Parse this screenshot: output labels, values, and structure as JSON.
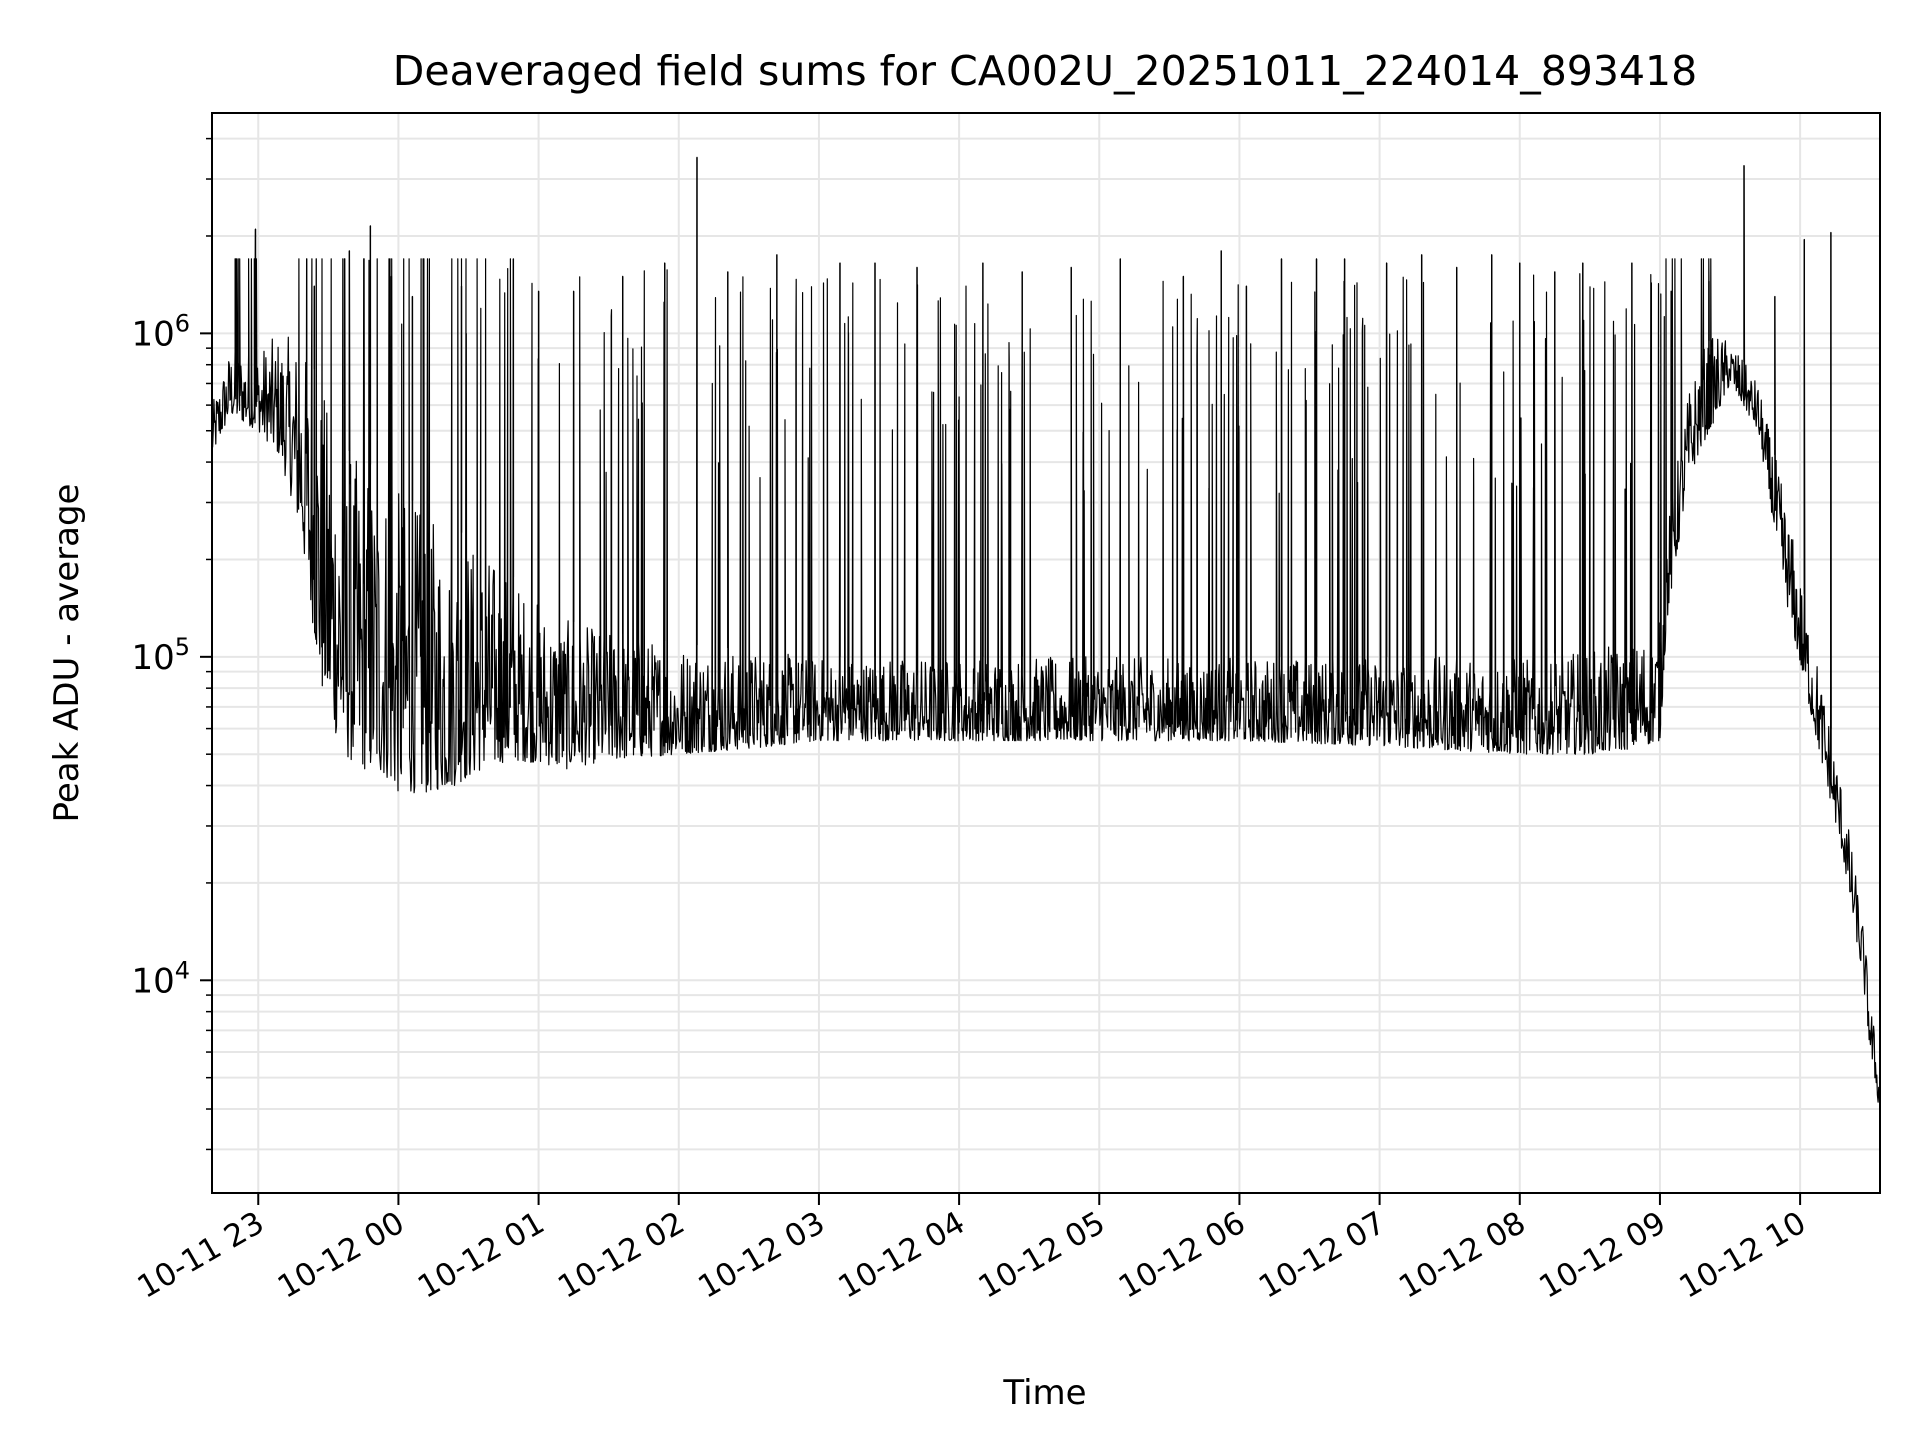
{
  "chart_data": {
    "type": "line",
    "title": "Deaveraged field sums for CA002U_20251011_224014_893418",
    "xlabel": "Time",
    "ylabel": "Peak ADU - average",
    "yscale": "log",
    "ylim": [
      2200,
      4800000
    ],
    "xlim_hours": [
      -1.33,
      10.57
    ],
    "grid": true,
    "line_color": "#000000",
    "grid_color": "#e6e6e6",
    "x_ticks": [
      {
        "label": "10-11 23",
        "hour": -1
      },
      {
        "label": "10-12 00",
        "hour": 0
      },
      {
        "label": "10-12 01",
        "hour": 1
      },
      {
        "label": "10-12 02",
        "hour": 2
      },
      {
        "label": "10-12 03",
        "hour": 3
      },
      {
        "label": "10-12 04",
        "hour": 4
      },
      {
        "label": "10-12 05",
        "hour": 5
      },
      {
        "label": "10-12 06",
        "hour": 6
      },
      {
        "label": "10-12 07",
        "hour": 7
      },
      {
        "label": "10-12 08",
        "hour": 8
      },
      {
        "label": "10-12 09",
        "hour": 9
      },
      {
        "label": "10-12 10",
        "hour": 10
      }
    ],
    "y_ticks": [
      {
        "base": "10",
        "exp": "4",
        "value": 10000
      },
      {
        "base": "10",
        "exp": "5",
        "value": 100000
      },
      {
        "base": "10",
        "exp": "6",
        "value": 1000000
      }
    ],
    "series": [
      {
        "name": "Deaveraged field sum",
        "envelope": {
          "hour": [
            -1.33,
            -1.2,
            -1.0,
            -0.85,
            -0.7,
            -0.55,
            -0.4,
            -0.25,
            -0.1,
            0.0,
            0.2,
            0.4,
            0.6,
            0.8,
            1.0,
            1.2,
            1.5,
            2.0,
            2.5,
            3.0,
            4.0,
            5.0,
            6.0,
            7.0,
            8.0,
            8.5,
            8.8,
            9.0,
            9.05,
            9.2,
            9.3,
            9.4,
            9.5,
            9.7,
            9.9,
            10.1,
            10.3,
            10.45,
            10.5,
            10.55,
            10.57
          ],
          "low": [
            420000,
            560000,
            500000,
            420000,
            250000,
            80000,
            50000,
            45000,
            43000,
            38000,
            38000,
            40000,
            45000,
            48000,
            47000,
            45000,
            48000,
            50000,
            52000,
            55000,
            55000,
            55000,
            55000,
            53000,
            50000,
            50000,
            52000,
            55000,
            130000,
            350000,
            450000,
            550000,
            700000,
            500000,
            150000,
            60000,
            25000,
            10000,
            6000,
            4500,
            3500
          ],
          "high": [
            600000,
            900000,
            900000,
            1000000,
            950000,
            700000,
            450000,
            400000,
            380000,
            330000,
            280000,
            250000,
            220000,
            180000,
            150000,
            130000,
            120000,
            110000,
            105000,
            100000,
            100000,
            100000,
            100000,
            100000,
            100000,
            105000,
            110000,
            130000,
            250000,
            650000,
            900000,
            1000000,
            950000,
            700000,
            300000,
            110000,
            40000,
            15000,
            9000,
            6000,
            5000
          ]
        },
        "spikes": [
          {
            "hour": -1.02,
            "value": 2100000
          },
          {
            "hour": -0.6,
            "value": 1400000
          },
          {
            "hour": -0.35,
            "value": 1800000
          },
          {
            "hour": -0.2,
            "value": 2150000
          },
          {
            "hour": -0.05,
            "value": 1500000
          },
          {
            "hour": 0.1,
            "value": 1300000
          },
          {
            "hour": 0.45,
            "value": 1400000
          },
          {
            "hour": 0.82,
            "value": 1700000
          },
          {
            "hour": 1.0,
            "value": 1350000
          },
          {
            "hour": 1.25,
            "value": 1350000
          },
          {
            "hour": 1.6,
            "value": 1500000
          },
          {
            "hour": 1.9,
            "value": 1650000
          },
          {
            "hour": 2.13,
            "value": 3500000
          },
          {
            "hour": 2.35,
            "value": 1550000
          },
          {
            "hour": 2.7,
            "value": 1750000
          },
          {
            "hour": 3.15,
            "value": 1650000
          },
          {
            "hour": 3.4,
            "value": 1650000
          },
          {
            "hour": 3.7,
            "value": 1600000
          },
          {
            "hour": 4.17,
            "value": 1650000
          },
          {
            "hour": 4.45,
            "value": 1550000
          },
          {
            "hour": 4.8,
            "value": 1600000
          },
          {
            "hour": 5.15,
            "value": 1700000
          },
          {
            "hour": 5.6,
            "value": 1500000
          },
          {
            "hour": 5.87,
            "value": 1800000
          },
          {
            "hour": 6.05,
            "value": 1400000
          },
          {
            "hour": 6.3,
            "value": 1700000
          },
          {
            "hour": 6.55,
            "value": 1700000
          },
          {
            "hour": 6.75,
            "value": 1700000
          },
          {
            "hour": 7.05,
            "value": 1650000
          },
          {
            "hour": 7.3,
            "value": 1750000
          },
          {
            "hour": 7.55,
            "value": 1600000
          },
          {
            "hour": 7.8,
            "value": 1750000
          },
          {
            "hour": 8.0,
            "value": 1650000
          },
          {
            "hour": 8.25,
            "value": 1550000
          },
          {
            "hour": 8.45,
            "value": 1650000
          },
          {
            "hour": 8.8,
            "value": 1650000
          },
          {
            "hour": 9.08,
            "value": 1350000
          },
          {
            "hour": 9.35,
            "value": 1450000
          },
          {
            "hour": 9.6,
            "value": 3300000
          },
          {
            "hour": 9.82,
            "value": 1300000
          },
          {
            "hour": 10.03,
            "value": 1950000
          },
          {
            "hour": 10.22,
            "value": 2050000
          }
        ]
      }
    ]
  }
}
